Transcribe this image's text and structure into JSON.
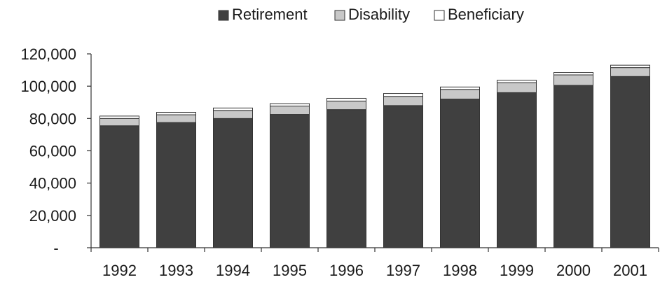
{
  "chart_data": {
    "type": "bar",
    "stacked": true,
    "title": "",
    "xlabel": "",
    "ylabel": "",
    "categories": [
      "1992",
      "1993",
      "1994",
      "1995",
      "1996",
      "1997",
      "1998",
      "1999",
      "2000",
      "2001"
    ],
    "series": [
      {
        "name": "Retirement",
        "color": "#404040",
        "values": [
          75500,
          77500,
          80000,
          82500,
          85500,
          88000,
          92000,
          96000,
          100500,
          106000
        ]
      },
      {
        "name": "Disability",
        "color": "#c8c8c8",
        "values": [
          4500,
          4800,
          5000,
          5200,
          5300,
          5700,
          6000,
          6200,
          6500,
          5500
        ]
      },
      {
        "name": "Beneficiary",
        "color": "#ffffff",
        "values": [
          1500,
          1500,
          1500,
          1500,
          1700,
          1800,
          1500,
          1500,
          1500,
          1500
        ]
      }
    ],
    "ylim": [
      0,
      120000
    ],
    "yticks": [
      0,
      20000,
      40000,
      60000,
      80000,
      100000,
      120000
    ],
    "ytick_labels": [
      "-",
      "20,000",
      "40,000",
      "60,000",
      "80,000",
      "100,000",
      "120,000"
    ],
    "grid": false,
    "legend_position": "top-center"
  }
}
